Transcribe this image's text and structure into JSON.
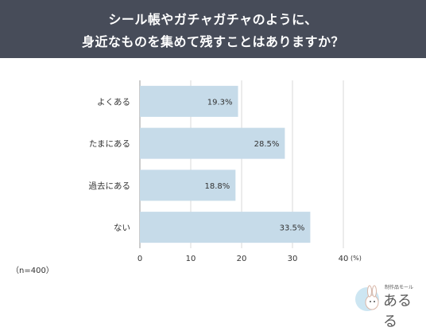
{
  "title": {
    "line1": "シール帳やガチャガチャのように、",
    "line2": "身近なものを集めて残すことはありますか？"
  },
  "chart_data": {
    "type": "bar",
    "orientation": "horizontal",
    "categories": [
      "よくある",
      "たまにある",
      "過去にある",
      "ない"
    ],
    "values": [
      19.3,
      28.5,
      18.8,
      33.5
    ],
    "value_labels": [
      "19.3%",
      "28.5%",
      "18.8%",
      "33.5%"
    ],
    "x_ticks": [
      "0",
      "10",
      "20",
      "30",
      "40"
    ],
    "xlim": [
      0,
      40
    ],
    "unit_label": "(%)",
    "grid": true,
    "bar_color": "#c6dbe9"
  },
  "note": "（n=400）",
  "logo": {
    "sub": "制作品モール",
    "main": "あるる"
  }
}
